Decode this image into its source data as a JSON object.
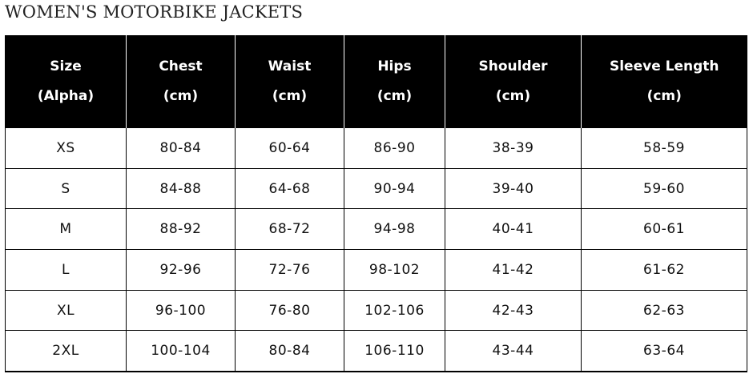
{
  "title": "WOMEN'S MOTORBIKE JACKETS",
  "table": {
    "headers": [
      [
        "Size",
        "(Alpha)"
      ],
      [
        "Chest",
        "(cm)"
      ],
      [
        "Waist",
        "(cm)"
      ],
      [
        "Hips",
        "(cm)"
      ],
      [
        "Shoulder",
        "(cm)"
      ],
      [
        "Sleeve Length",
        "(cm)"
      ]
    ],
    "rows": [
      [
        "XS",
        "80-84",
        "60-64",
        "86-90",
        "38-39",
        "58-59"
      ],
      [
        "S",
        "84-88",
        "64-68",
        "90-94",
        "39-40",
        "59-60"
      ],
      [
        "M",
        "88-92",
        "68-72",
        "94-98",
        "40-41",
        "60-61"
      ],
      [
        "L",
        "92-96",
        "72-76",
        "98-102",
        "41-42",
        "61-62"
      ],
      [
        "XL",
        "96-100",
        "76-80",
        "102-106",
        "42-43",
        "62-63"
      ],
      [
        "2XL",
        "100-104",
        "80-84",
        "106-110",
        "43-44",
        "63-64"
      ]
    ]
  }
}
